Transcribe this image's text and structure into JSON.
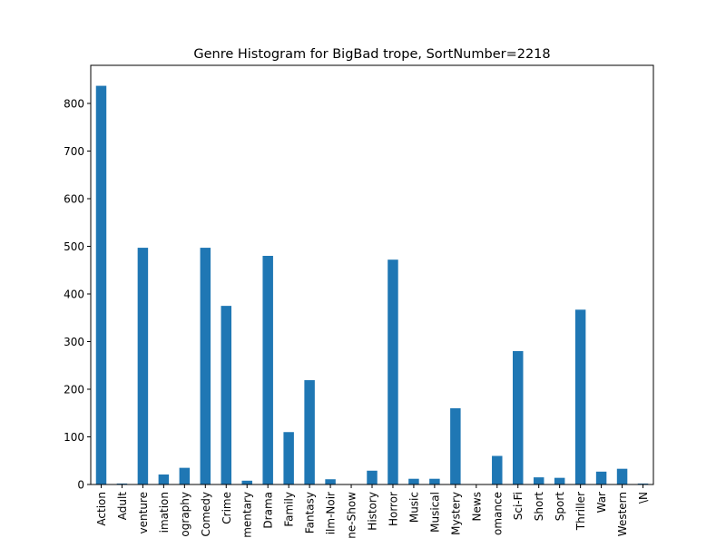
{
  "chart_data": {
    "type": "bar",
    "title": "Genre Histogram for BigBad trope, SortNumber=2218",
    "xlabel": "",
    "ylabel": "",
    "categories": [
      "Action",
      "Adult",
      "Adventure",
      "Animation",
      "Biography",
      "Comedy",
      "Crime",
      "Documentary",
      "Drama",
      "Family",
      "Fantasy",
      "Film-Noir",
      "Game-Show",
      "History",
      "Horror",
      "Music",
      "Musical",
      "Mystery",
      "News",
      "Romance",
      "Sci-Fi",
      "Short",
      "Sport",
      "Thriller",
      "War",
      "Western",
      "\\N"
    ],
    "tick_labels_visible": [
      "Action",
      "Adult",
      "venture",
      "imation",
      "ography",
      "Comedy",
      "Crime",
      "mentary",
      "Drama",
      "Family",
      "Fantasy",
      "ilm-Noir",
      "ne-Show",
      "History",
      "Horror",
      "Music",
      "Musical",
      "Mystery",
      "News",
      "omance",
      "Sci-Fi",
      "Short",
      "Sport",
      "Thriller",
      "War",
      "Western",
      "\\N"
    ],
    "values": [
      837,
      2,
      497,
      21,
      35,
      497,
      375,
      8,
      480,
      110,
      219,
      11,
      0,
      29,
      472,
      12,
      12,
      160,
      0,
      60,
      280,
      15,
      14,
      367,
      27,
      33,
      2
    ],
    "ylim": [
      0,
      880
    ],
    "yticks": [
      0,
      100,
      200,
      300,
      400,
      500,
      600,
      700,
      800
    ],
    "bar_color": "#1f77b4",
    "grid": false,
    "legend": "none"
  }
}
